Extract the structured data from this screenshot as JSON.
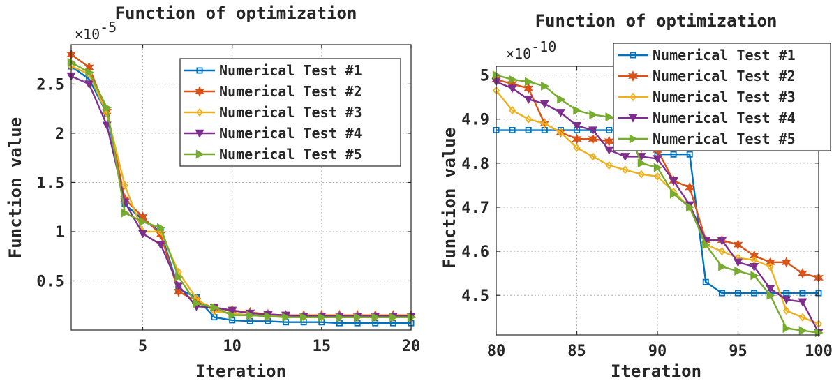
{
  "chart_data": [
    {
      "type": "line",
      "title": "Function of optimization",
      "xlabel": "Iteration",
      "ylabel": "Function value",
      "y_exponent_base": "×10",
      "y_exponent_power": "-5",
      "xlim": [
        1,
        20
      ],
      "ylim": [
        0,
        2.9
      ],
      "xticks": [
        5,
        10,
        15,
        20
      ],
      "xtick_labels": [
        "5",
        "10",
        "15",
        "20"
      ],
      "yticks": [
        0.5,
        1,
        1.5,
        2,
        2.5
      ],
      "ytick_labels": [
        "0.5",
        "1",
        "1.5",
        "2",
        "2.5"
      ],
      "grid": true,
      "legend_position": "top-right",
      "x": [
        1,
        2,
        3,
        4,
        5,
        6,
        7,
        8,
        9,
        10,
        11,
        12,
        13,
        14,
        15,
        16,
        17,
        18,
        19,
        20
      ],
      "series": [
        {
          "name": "Numerical Test #1",
          "color": "#0072BD",
          "marker": "square",
          "values": [
            2.68,
            2.55,
            2.2,
            1.28,
            1.12,
            1.0,
            0.42,
            0.33,
            0.13,
            0.1,
            0.09,
            0.09,
            0.08,
            0.08,
            0.08,
            0.07,
            0.07,
            0.07,
            0.07,
            0.07
          ]
        },
        {
          "name": "Numerical Test #2",
          "color": "#D95319",
          "marker": "hexagram",
          "values": [
            2.8,
            2.67,
            2.22,
            1.33,
            1.15,
            0.97,
            0.39,
            0.3,
            0.22,
            0.2,
            0.18,
            0.16,
            0.15,
            0.15,
            0.15,
            0.15,
            0.15,
            0.15,
            0.15,
            0.15
          ]
        },
        {
          "name": "Numerical Test #3",
          "color": "#EDB120",
          "marker": "diamond",
          "values": [
            2.68,
            2.6,
            2.2,
            1.47,
            1.0,
            1.0,
            0.59,
            0.32,
            0.19,
            0.17,
            0.15,
            0.14,
            0.14,
            0.13,
            0.13,
            0.13,
            0.13,
            0.13,
            0.13,
            0.13
          ]
        },
        {
          "name": "Numerical Test #4",
          "color": "#7E2F8E",
          "marker": "triangle-down",
          "values": [
            2.58,
            2.5,
            2.08,
            1.3,
            0.98,
            0.87,
            0.45,
            0.24,
            0.23,
            0.2,
            0.17,
            0.16,
            0.15,
            0.14,
            0.14,
            0.14,
            0.14,
            0.14,
            0.14,
            0.14
          ]
        },
        {
          "name": "Numerical Test #5",
          "color": "#77AC30",
          "marker": "triangle-right",
          "values": [
            2.72,
            2.62,
            2.26,
            1.19,
            1.1,
            1.04,
            0.54,
            0.27,
            0.23,
            0.15,
            0.15,
            0.14,
            0.13,
            0.13,
            0.13,
            0.13,
            0.13,
            0.13,
            0.13,
            0.13
          ]
        }
      ]
    },
    {
      "type": "line",
      "title": "Function of optimization",
      "xlabel": "Iteration",
      "ylabel": "Function value",
      "y_exponent_base": "×10",
      "y_exponent_power": "-10",
      "xlim": [
        80,
        100
      ],
      "ylim": [
        4.41,
        5.02
      ],
      "xticks": [
        80,
        85,
        90,
        95,
        100
      ],
      "xtick_labels": [
        "80",
        "85",
        "90",
        "95",
        "100"
      ],
      "yticks": [
        4.5,
        4.6,
        4.7,
        4.8,
        4.9,
        5
      ],
      "ytick_labels": [
        "4.5",
        "4.6",
        "4.7",
        "4.8",
        "4.9",
        "5"
      ],
      "grid": true,
      "legend_position": "top-right",
      "x": [
        80,
        81,
        82,
        83,
        84,
        85,
        86,
        87,
        88,
        89,
        90,
        91,
        92,
        93,
        94,
        95,
        96,
        97,
        98,
        99,
        100
      ],
      "series": [
        {
          "name": "Numerical Test #1",
          "color": "#0072BD",
          "marker": "square",
          "values": [
            4.875,
            4.875,
            4.875,
            4.875,
            4.875,
            4.875,
            4.875,
            4.875,
            4.875,
            4.875,
            4.82,
            4.82,
            4.82,
            4.53,
            4.505,
            4.505,
            4.505,
            4.505,
            4.505,
            4.505,
            4.505
          ]
        },
        {
          "name": "Numerical Test #2",
          "color": "#D95319",
          "marker": "hexagram",
          "values": [
            4.99,
            4.98,
            4.97,
            4.89,
            4.87,
            4.855,
            4.855,
            4.85,
            4.84,
            4.835,
            4.83,
            4.76,
            4.745,
            4.625,
            4.625,
            4.615,
            4.59,
            4.575,
            4.575,
            4.55,
            4.54
          ]
        },
        {
          "name": "Numerical Test #3",
          "color": "#EDB120",
          "marker": "diamond",
          "values": [
            4.965,
            4.92,
            4.9,
            4.89,
            4.87,
            4.835,
            4.815,
            4.795,
            4.785,
            4.775,
            4.77,
            4.735,
            4.7,
            4.615,
            4.6,
            4.585,
            4.58,
            4.565,
            4.465,
            4.45,
            4.435
          ]
        },
        {
          "name": "Numerical Test #4",
          "color": "#7E2F8E",
          "marker": "triangle-down",
          "values": [
            4.985,
            4.97,
            4.945,
            4.935,
            4.915,
            4.885,
            4.875,
            4.83,
            4.815,
            4.815,
            4.81,
            4.76,
            4.705,
            4.625,
            4.625,
            4.575,
            4.565,
            4.515,
            4.49,
            4.485,
            4.415
          ]
        },
        {
          "name": "Numerical Test #5",
          "color": "#77AC30",
          "marker": "triangle-right",
          "values": [
            5.0,
            4.99,
            4.985,
            4.975,
            4.945,
            4.92,
            4.91,
            4.905,
            4.895,
            4.8,
            4.79,
            4.73,
            4.7,
            4.615,
            4.565,
            4.555,
            4.545,
            4.5,
            4.425,
            4.42,
            4.415
          ]
        }
      ]
    }
  ]
}
